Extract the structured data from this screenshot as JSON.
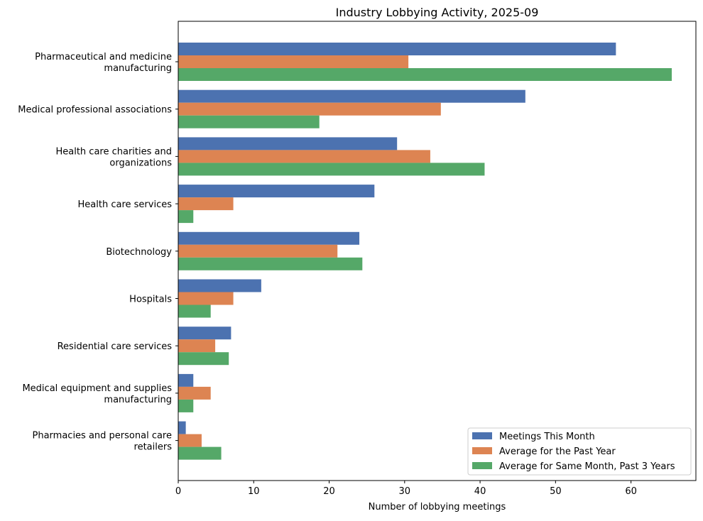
{
  "chart_data": {
    "type": "bar",
    "orientation": "horizontal",
    "title": "Industry Lobbying Activity, 2025-09",
    "xlabel": "Number of lobbying meetings",
    "ylabel": "",
    "xlim": [
      0,
      68.6
    ],
    "xticks": [
      0,
      10,
      20,
      30,
      40,
      50,
      60
    ],
    "grid": false,
    "legend_position": "lower-right",
    "categories": [
      [
        "Pharmaceutical and medicine",
        "manufacturing"
      ],
      [
        "Medical professional associations"
      ],
      [
        "Health care charities and",
        "organizations"
      ],
      [
        "Health care services"
      ],
      [
        "Biotechnology"
      ],
      [
        "Hospitals"
      ],
      [
        "Residential care services"
      ],
      [
        "Medical equipment and supplies",
        "manufacturing"
      ],
      [
        "Pharmacies and personal care",
        "retailers"
      ]
    ],
    "series": [
      {
        "name": "Meetings This Month",
        "color": "#4c72b0",
        "values": [
          58,
          46,
          29,
          26,
          24,
          11,
          7,
          2,
          1
        ]
      },
      {
        "name": "Average for the Past Year",
        "color": "#dd8452",
        "values": [
          30.5,
          34.8,
          33.4,
          7.3,
          21.1,
          7.3,
          4.9,
          4.3,
          3.1
        ]
      },
      {
        "name": "Average for Same Month, Past 3 Years",
        "color": "#55a868",
        "values": [
          65.4,
          18.7,
          40.6,
          2.0,
          24.4,
          4.3,
          6.7,
          2.0,
          5.7
        ]
      }
    ]
  }
}
